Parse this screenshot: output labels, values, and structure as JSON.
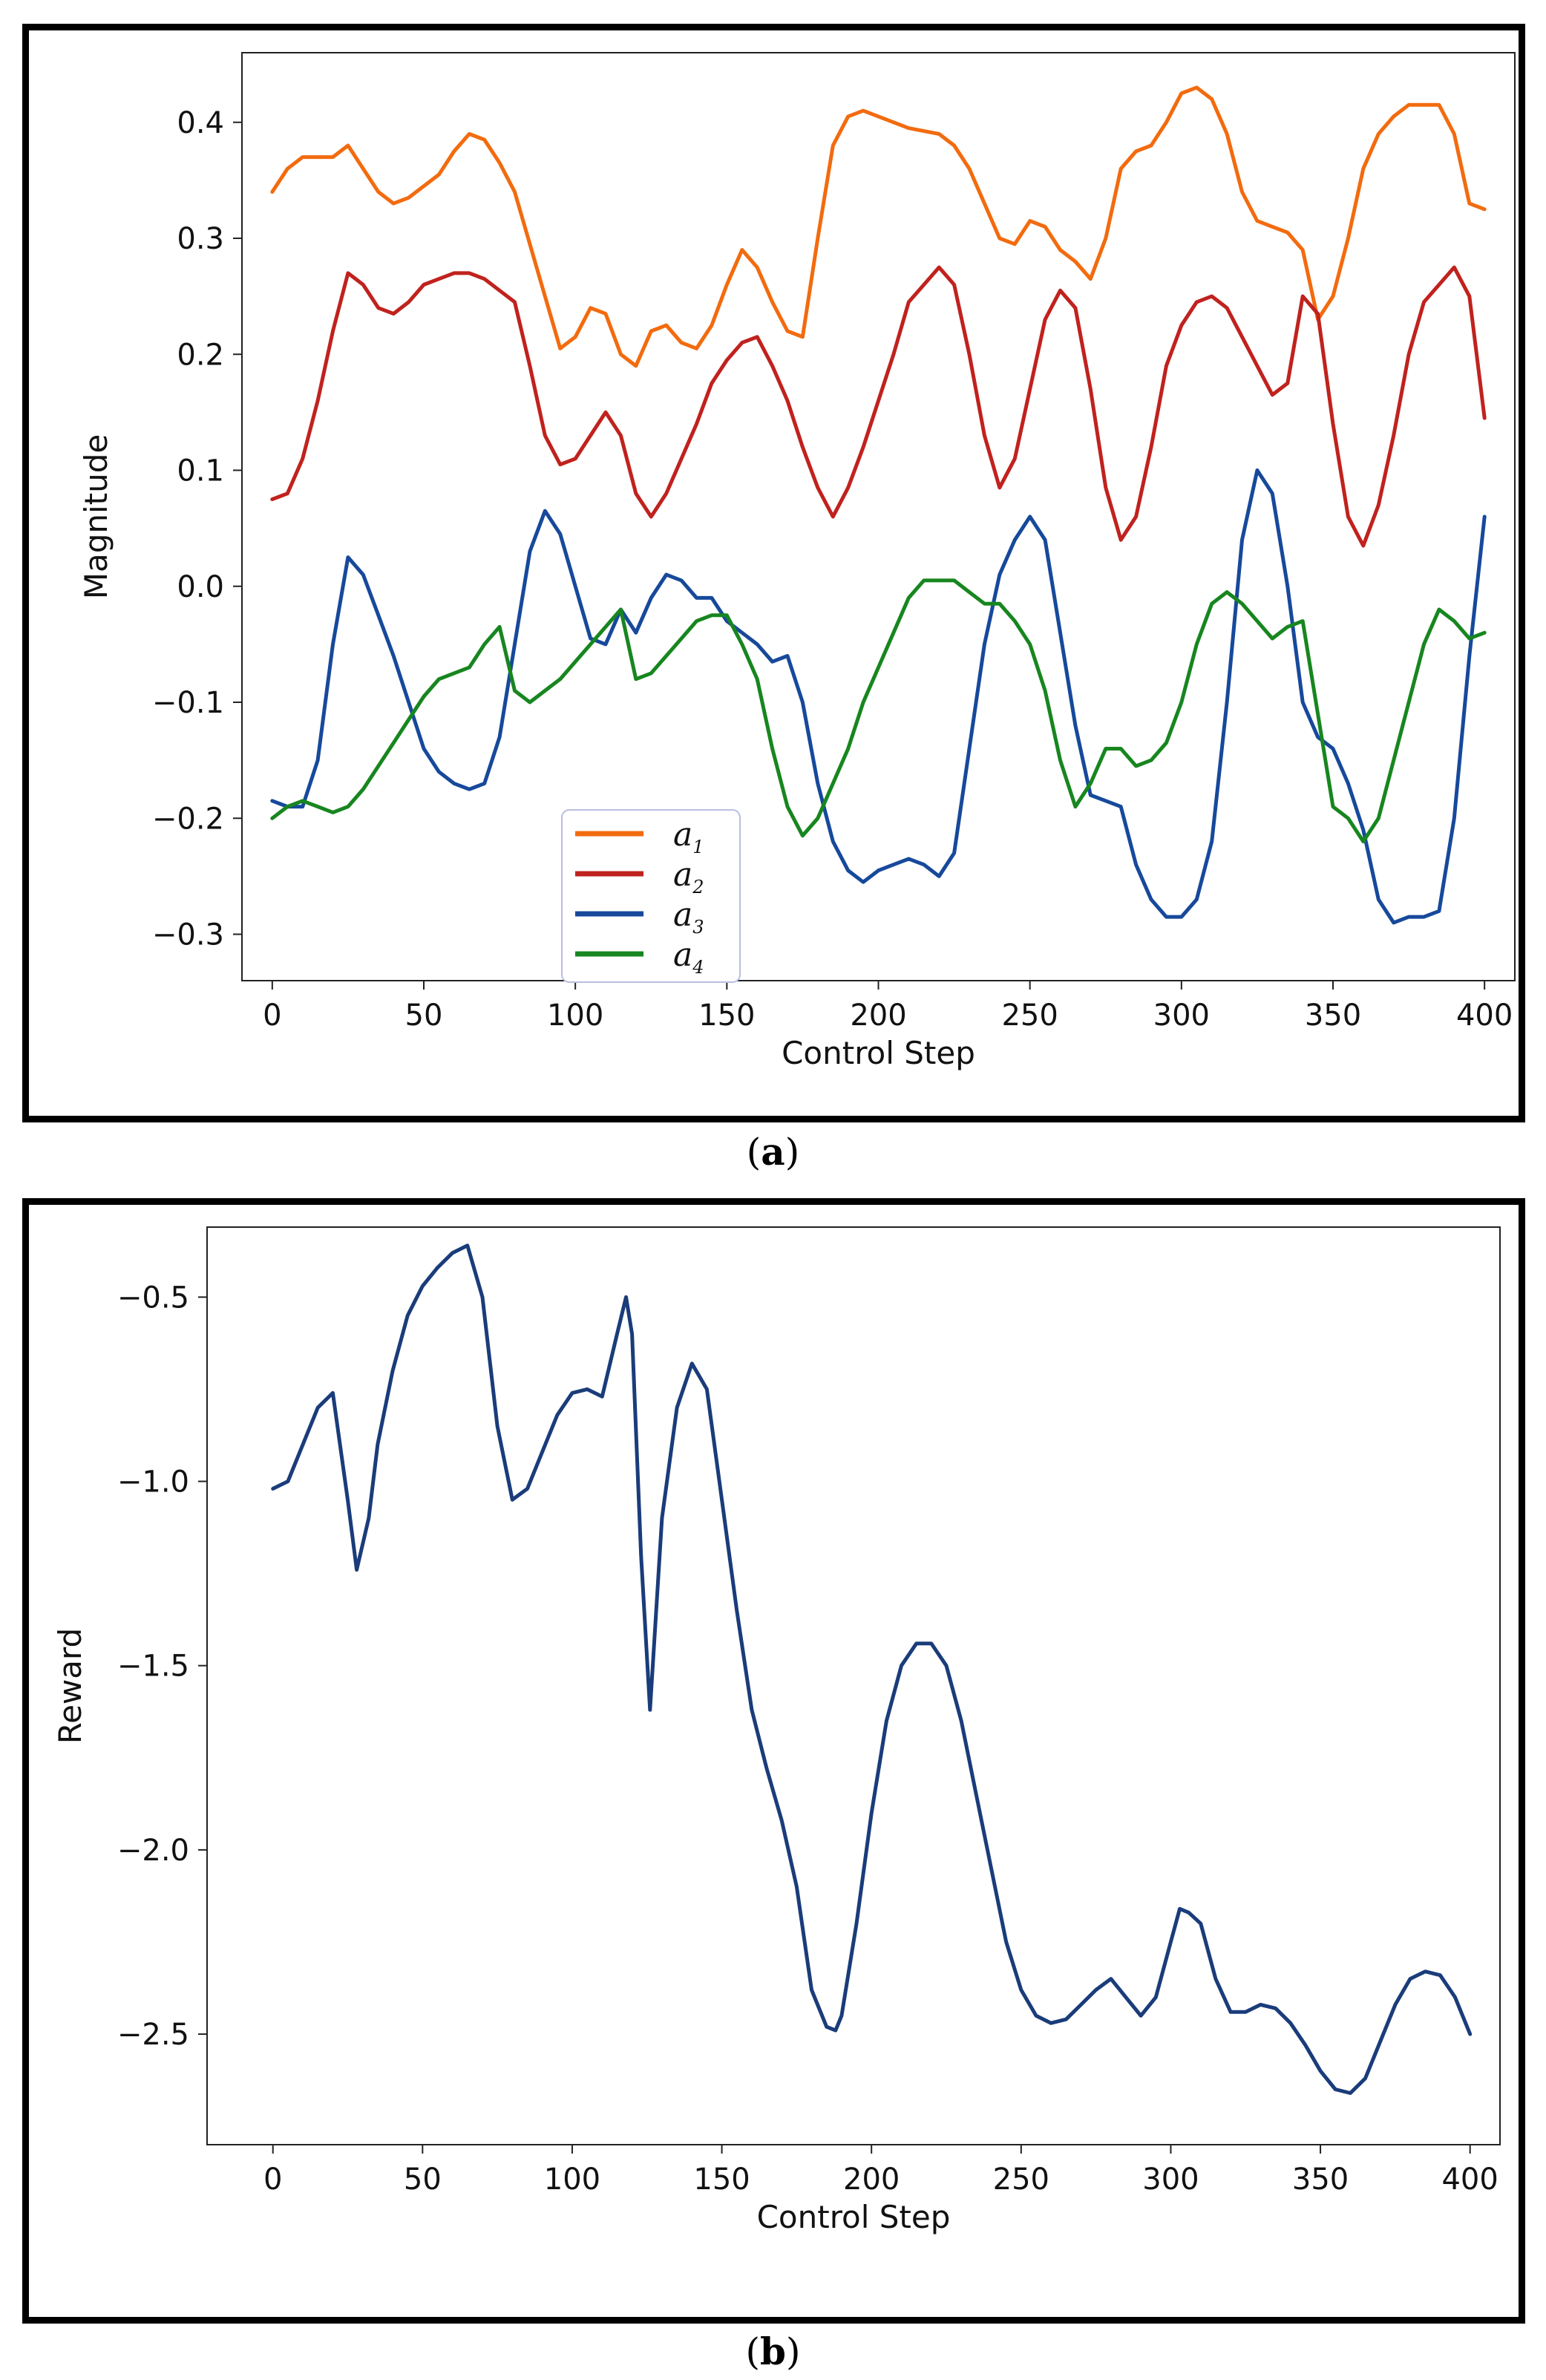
{
  "captions": {
    "a_open": "(",
    "a_letter": "a",
    "a_close": ")",
    "b_open": "(",
    "b_letter": "b",
    "b_close": ")"
  },
  "chart_data": [
    {
      "id": "a",
      "type": "line",
      "title": "",
      "xlabel": "Control Step",
      "ylabel": "Magnitude",
      "xlim": [
        -10,
        410
      ],
      "ylim": [
        -0.34,
        0.46
      ],
      "xticks": [
        0,
        50,
        100,
        150,
        200,
        250,
        300,
        350,
        400
      ],
      "xtick_labels": [
        "0",
        "50",
        "100",
        "150",
        "200",
        "250",
        "300",
        "350",
        "400"
      ],
      "yticks": [
        -0.3,
        -0.2,
        -0.1,
        0.0,
        0.1,
        0.2,
        0.3,
        0.4
      ],
      "ytick_labels": [
        "−0.3",
        "−0.2",
        "−0.1",
        "0.0",
        "0.1",
        "0.2",
        "0.3",
        "0.4"
      ],
      "legend_position": "lower-center-left",
      "series": [
        {
          "name": "a₁",
          "base": "a",
          "sub": "1",
          "color": "#f26b0f",
          "x": [
            0,
            5,
            10,
            20,
            25,
            30,
            35,
            40,
            45,
            55,
            60,
            65,
            70,
            75,
            80,
            90,
            95,
            100,
            105,
            110,
            115,
            120,
            125,
            130,
            135,
            140,
            145,
            150,
            155,
            160,
            165,
            170,
            175,
            180,
            185,
            190,
            195,
            200,
            210,
            220,
            225,
            230,
            235,
            240,
            245,
            250,
            255,
            260,
            265,
            270,
            275,
            280,
            285,
            290,
            295,
            300,
            305,
            310,
            315,
            320,
            325,
            330,
            335,
            340,
            345,
            350,
            355,
            360,
            365,
            370,
            375,
            380,
            385,
            390,
            395,
            400
          ],
          "values": [
            0.34,
            0.36,
            0.37,
            0.37,
            0.38,
            0.36,
            0.34,
            0.33,
            0.335,
            0.355,
            0.375,
            0.39,
            0.385,
            0.365,
            0.34,
            0.25,
            0.205,
            0.215,
            0.24,
            0.235,
            0.2,
            0.19,
            0.22,
            0.225,
            0.21,
            0.205,
            0.225,
            0.26,
            0.29,
            0.275,
            0.245,
            0.22,
            0.215,
            0.3,
            0.38,
            0.405,
            0.41,
            0.405,
            0.395,
            0.39,
            0.38,
            0.36,
            0.33,
            0.3,
            0.295,
            0.315,
            0.31,
            0.29,
            0.28,
            0.265,
            0.3,
            0.36,
            0.375,
            0.38,
            0.4,
            0.425,
            0.43,
            0.42,
            0.39,
            0.34,
            0.315,
            0.31,
            0.305,
            0.29,
            0.23,
            0.25,
            0.3,
            0.36,
            0.39,
            0.405,
            0.415,
            0.415,
            0.415,
            0.39,
            0.33,
            0.325
          ]
        },
        {
          "name": "a₂",
          "base": "a",
          "sub": "2",
          "color": "#c0221e",
          "x": [
            0,
            5,
            10,
            15,
            20,
            25,
            30,
            35,
            40,
            45,
            50,
            55,
            60,
            65,
            70,
            75,
            80,
            85,
            90,
            95,
            100,
            105,
            110,
            115,
            120,
            125,
            130,
            135,
            140,
            145,
            150,
            155,
            160,
            165,
            170,
            175,
            180,
            185,
            190,
            195,
            200,
            205,
            210,
            215,
            220,
            225,
            230,
            235,
            240,
            245,
            250,
            255,
            260,
            265,
            270,
            275,
            280,
            285,
            290,
            295,
            300,
            305,
            310,
            315,
            320,
            325,
            330,
            335,
            340,
            345,
            350,
            355,
            360,
            365,
            370,
            375,
            380,
            385,
            390,
            395,
            400
          ],
          "values": [
            0.075,
            0.08,
            0.11,
            0.16,
            0.22,
            0.27,
            0.26,
            0.24,
            0.235,
            0.245,
            0.26,
            0.265,
            0.27,
            0.27,
            0.265,
            0.255,
            0.245,
            0.19,
            0.13,
            0.105,
            0.11,
            0.13,
            0.15,
            0.13,
            0.08,
            0.06,
            0.08,
            0.11,
            0.14,
            0.175,
            0.195,
            0.21,
            0.215,
            0.19,
            0.16,
            0.12,
            0.085,
            0.06,
            0.085,
            0.12,
            0.16,
            0.2,
            0.245,
            0.26,
            0.275,
            0.26,
            0.2,
            0.13,
            0.085,
            0.11,
            0.17,
            0.23,
            0.255,
            0.24,
            0.17,
            0.085,
            0.04,
            0.06,
            0.12,
            0.19,
            0.225,
            0.245,
            0.25,
            0.24,
            0.215,
            0.19,
            0.165,
            0.175,
            0.25,
            0.235,
            0.14,
            0.06,
            0.035,
            0.07,
            0.13,
            0.2,
            0.245,
            0.26,
            0.275,
            0.25,
            0.145
          ]
        },
        {
          "name": "a₃",
          "base": "a",
          "sub": "3",
          "color": "#17499b",
          "x": [
            0,
            5,
            10,
            15,
            20,
            25,
            30,
            35,
            40,
            45,
            50,
            55,
            60,
            65,
            70,
            75,
            80,
            85,
            90,
            95,
            100,
            105,
            110,
            115,
            120,
            125,
            130,
            135,
            140,
            145,
            150,
            155,
            160,
            165,
            170,
            175,
            180,
            185,
            190,
            195,
            200,
            205,
            210,
            215,
            220,
            225,
            230,
            235,
            240,
            245,
            250,
            255,
            260,
            265,
            270,
            275,
            280,
            285,
            290,
            295,
            300,
            305,
            310,
            315,
            320,
            325,
            330,
            335,
            340,
            345,
            350,
            355,
            360,
            365,
            370,
            375,
            380,
            385,
            390,
            395,
            400
          ],
          "values": [
            -0.185,
            -0.19,
            -0.19,
            -0.15,
            -0.05,
            0.025,
            0.01,
            -0.025,
            -0.06,
            -0.1,
            -0.14,
            -0.16,
            -0.17,
            -0.175,
            -0.17,
            -0.13,
            -0.05,
            0.03,
            0.065,
            0.045,
            0.0,
            -0.045,
            -0.05,
            -0.02,
            -0.04,
            -0.01,
            0.01,
            0.005,
            -0.01,
            -0.01,
            -0.03,
            -0.04,
            -0.05,
            -0.065,
            -0.06,
            -0.1,
            -0.17,
            -0.22,
            -0.245,
            -0.255,
            -0.245,
            -0.24,
            -0.235,
            -0.24,
            -0.25,
            -0.23,
            -0.14,
            -0.05,
            0.01,
            0.04,
            0.06,
            0.04,
            -0.04,
            -0.12,
            -0.18,
            -0.185,
            -0.19,
            -0.24,
            -0.27,
            -0.285,
            -0.285,
            -0.27,
            -0.22,
            -0.1,
            0.04,
            0.1,
            0.08,
            0.0,
            -0.1,
            -0.13,
            -0.14,
            -0.17,
            -0.21,
            -0.27,
            -0.29,
            -0.285,
            -0.285,
            -0.28,
            -0.2,
            -0.06,
            0.06
          ]
        },
        {
          "name": "a₄",
          "base": "a",
          "sub": "4",
          "color": "#17861f",
          "x": [
            0,
            5,
            10,
            15,
            20,
            25,
            30,
            35,
            40,
            45,
            50,
            55,
            60,
            65,
            70,
            75,
            80,
            85,
            90,
            95,
            100,
            105,
            110,
            115,
            120,
            125,
            130,
            135,
            140,
            145,
            150,
            155,
            160,
            165,
            170,
            175,
            180,
            185,
            190,
            195,
            200,
            205,
            210,
            215,
            220,
            225,
            230,
            235,
            240,
            245,
            250,
            255,
            260,
            265,
            270,
            275,
            280,
            285,
            290,
            295,
            300,
            305,
            310,
            315,
            320,
            325,
            330,
            335,
            340,
            345,
            350,
            355,
            360,
            365,
            370,
            375,
            380,
            385,
            390,
            395,
            400
          ],
          "values": [
            -0.2,
            -0.19,
            -0.185,
            -0.19,
            -0.195,
            -0.19,
            -0.175,
            -0.155,
            -0.135,
            -0.115,
            -0.095,
            -0.08,
            -0.075,
            -0.07,
            -0.05,
            -0.035,
            -0.09,
            -0.1,
            -0.09,
            -0.08,
            -0.065,
            -0.05,
            -0.035,
            -0.02,
            -0.08,
            -0.075,
            -0.06,
            -0.045,
            -0.03,
            -0.025,
            -0.025,
            -0.05,
            -0.08,
            -0.14,
            -0.19,
            -0.215,
            -0.2,
            -0.17,
            -0.14,
            -0.1,
            -0.07,
            -0.04,
            -0.01,
            0.005,
            0.005,
            0.005,
            -0.005,
            -0.015,
            -0.015,
            -0.03,
            -0.05,
            -0.09,
            -0.15,
            -0.19,
            -0.17,
            -0.14,
            -0.14,
            -0.155,
            -0.15,
            -0.135,
            -0.1,
            -0.05,
            -0.015,
            -0.005,
            -0.015,
            -0.03,
            -0.045,
            -0.035,
            -0.03,
            -0.11,
            -0.19,
            -0.2,
            -0.22,
            -0.2,
            -0.15,
            -0.1,
            -0.05,
            -0.02,
            -0.03,
            -0.045,
            -0.04
          ]
        }
      ]
    },
    {
      "id": "b",
      "type": "line",
      "title": "",
      "xlabel": "Control Step",
      "ylabel": "Reward",
      "xlim": [
        -22,
        410
      ],
      "ylim": [
        -2.8,
        -0.31
      ],
      "xticks": [
        0,
        50,
        100,
        150,
        200,
        250,
        300,
        350,
        400
      ],
      "xtick_labels": [
        "0",
        "50",
        "100",
        "150",
        "200",
        "250",
        "300",
        "350",
        "400"
      ],
      "yticks": [
        -2.5,
        -2.0,
        -1.5,
        -1.0,
        -0.5
      ],
      "ytick_labels": [
        "−2.5",
        "−2.0",
        "−1.5",
        "−1.0",
        "−0.5"
      ],
      "series": [
        {
          "name": "reward",
          "color": "#1a3c7a",
          "x": [
            0,
            5,
            10,
            15,
            20,
            25,
            28,
            32,
            35,
            40,
            45,
            50,
            55,
            60,
            65,
            70,
            75,
            80,
            85,
            90,
            95,
            100,
            105,
            110,
            115,
            118,
            120,
            123,
            126,
            130,
            135,
            140,
            145,
            150,
            155,
            160,
            165,
            170,
            175,
            180,
            185,
            188,
            190,
            195,
            200,
            205,
            210,
            215,
            220,
            225,
            230,
            235,
            240,
            245,
            250,
            255,
            260,
            265,
            270,
            275,
            280,
            285,
            290,
            295,
            300,
            303,
            306,
            310,
            315,
            320,
            325,
            330,
            335,
            340,
            345,
            350,
            355,
            360,
            365,
            370,
            375,
            380,
            385,
            390,
            395,
            400
          ],
          "values": [
            -1.02,
            -1.0,
            -0.9,
            -0.8,
            -0.76,
            -1.05,
            -1.24,
            -1.1,
            -0.9,
            -0.7,
            -0.55,
            -0.47,
            -0.42,
            -0.38,
            -0.36,
            -0.5,
            -0.85,
            -1.05,
            -1.02,
            -0.92,
            -0.82,
            -0.76,
            -0.75,
            -0.77,
            -0.6,
            -0.5,
            -0.6,
            -1.2,
            -1.62,
            -1.1,
            -0.8,
            -0.68,
            -0.75,
            -1.05,
            -1.35,
            -1.62,
            -1.78,
            -1.92,
            -2.1,
            -2.38,
            -2.48,
            -2.49,
            -2.45,
            -2.2,
            -1.9,
            -1.65,
            -1.5,
            -1.44,
            -1.44,
            -1.5,
            -1.65,
            -1.85,
            -2.05,
            -2.25,
            -2.38,
            -2.45,
            -2.47,
            -2.46,
            -2.42,
            -2.38,
            -2.35,
            -2.4,
            -2.45,
            -2.4,
            -2.25,
            -2.16,
            -2.17,
            -2.2,
            -2.35,
            -2.44,
            -2.44,
            -2.42,
            -2.43,
            -2.47,
            -2.53,
            -2.6,
            -2.65,
            -2.66,
            -2.62,
            -2.52,
            -2.42,
            -2.35,
            -2.33,
            -2.34,
            -2.4,
            -2.5
          ]
        }
      ]
    }
  ]
}
